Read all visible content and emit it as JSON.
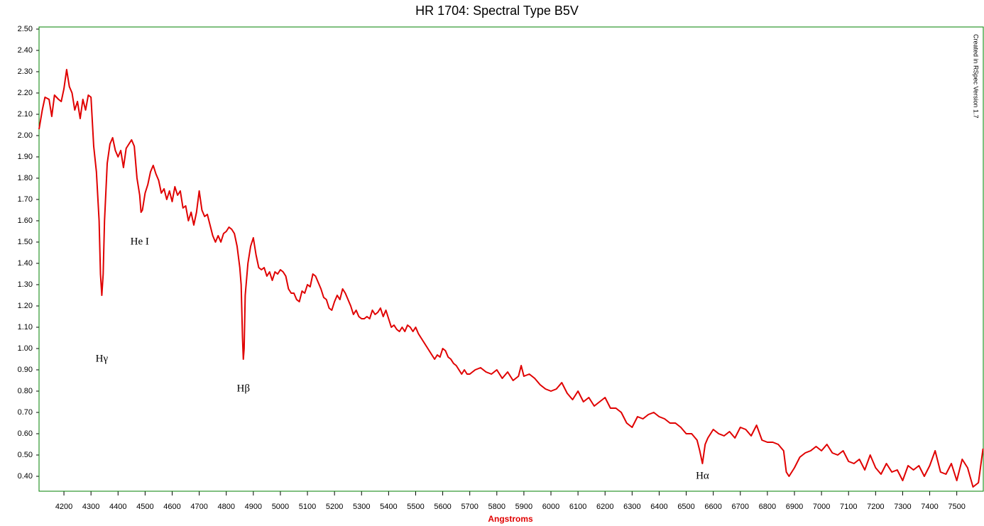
{
  "chart_data": {
    "type": "line",
    "title": "HR 1704: Spectral Type B5V",
    "x_label": "Angstroms",
    "note": "Created in RSpec Version 1.7",
    "xlim": [
      4108,
      7598
    ],
    "ylim": [
      0.33,
      2.51
    ],
    "xticks": [
      4200,
      4300,
      4400,
      4500,
      4600,
      4700,
      4800,
      4900,
      5000,
      5100,
      5200,
      5300,
      5400,
      5500,
      5600,
      5700,
      5800,
      5900,
      6000,
      6100,
      6200,
      6300,
      6400,
      6500,
      6600,
      6700,
      6800,
      6900,
      7000,
      7100,
      7200,
      7300,
      7400,
      7500
    ],
    "yticks": [
      {
        "value": 0.4,
        "label": "0.40"
      },
      {
        "value": 0.5,
        "label": "0.50"
      },
      {
        "value": 0.6,
        "label": "0.60"
      },
      {
        "value": 0.7,
        "label": "0.70"
      },
      {
        "value": 0.8,
        "label": "0.80"
      },
      {
        "value": 0.9,
        "label": "0.90"
      },
      {
        "value": 1.0,
        "label": "1.00"
      },
      {
        "value": 1.1,
        "label": "1.10"
      },
      {
        "value": 1.2,
        "label": "1.20"
      },
      {
        "value": 1.3,
        "label": "1.30"
      },
      {
        "value": 1.4,
        "label": "1.40"
      },
      {
        "value": 1.5,
        "label": "1.50"
      },
      {
        "value": 1.6,
        "label": "1.60"
      },
      {
        "value": 1.7,
        "label": "1.70"
      },
      {
        "value": 1.8,
        "label": "1.80"
      },
      {
        "value": 1.9,
        "label": "1.90"
      },
      {
        "value": 2.0,
        "label": "2.00"
      },
      {
        "value": 2.1,
        "label": "2.10"
      },
      {
        "value": 2.2,
        "label": "2.20"
      },
      {
        "value": 2.3,
        "label": "2.30"
      },
      {
        "value": 2.4,
        "label": "2.40"
      },
      {
        "value": 2.5,
        "label": "2.50"
      }
    ],
    "x": [
      4108,
      4120,
      4130,
      4145,
      4155,
      4165,
      4180,
      4190,
      4200,
      4210,
      4220,
      4230,
      4240,
      4250,
      4260,
      4270,
      4280,
      4290,
      4300,
      4310,
      4320,
      4330,
      4335,
      4340,
      4345,
      4350,
      4360,
      4370,
      4380,
      4390,
      4400,
      4410,
      4420,
      4430,
      4440,
      4450,
      4460,
      4470,
      4480,
      4485,
      4490,
      4500,
      4510,
      4520,
      4530,
      4540,
      4550,
      4560,
      4570,
      4580,
      4590,
      4600,
      4610,
      4620,
      4630,
      4640,
      4650,
      4660,
      4670,
      4680,
      4690,
      4700,
      4710,
      4720,
      4730,
      4740,
      4750,
      4760,
      4770,
      4780,
      4790,
      4800,
      4810,
      4820,
      4830,
      4840,
      4850,
      4855,
      4860,
      4863,
      4866,
      4870,
      4880,
      4890,
      4900,
      4910,
      4920,
      4930,
      4940,
      4950,
      4960,
      4970,
      4980,
      4990,
      5000,
      5010,
      5020,
      5030,
      5040,
      5050,
      5060,
      5070,
      5080,
      5090,
      5100,
      5110,
      5120,
      5130,
      5140,
      5150,
      5160,
      5170,
      5180,
      5190,
      5200,
      5210,
      5220,
      5230,
      5240,
      5250,
      5260,
      5270,
      5280,
      5290,
      5300,
      5310,
      5320,
      5330,
      5340,
      5350,
      5360,
      5370,
      5380,
      5390,
      5400,
      5410,
      5420,
      5430,
      5440,
      5450,
      5460,
      5470,
      5480,
      5490,
      5500,
      5510,
      5520,
      5530,
      5540,
      5550,
      5560,
      5570,
      5580,
      5590,
      5600,
      5610,
      5620,
      5630,
      5640,
      5650,
      5660,
      5670,
      5680,
      5690,
      5700,
      5720,
      5740,
      5760,
      5780,
      5800,
      5820,
      5840,
      5860,
      5880,
      5890,
      5900,
      5920,
      5940,
      5960,
      5980,
      6000,
      6020,
      6040,
      6060,
      6080,
      6100,
      6120,
      6140,
      6160,
      6180,
      6200,
      6220,
      6240,
      6260,
      6280,
      6300,
      6320,
      6340,
      6360,
      6380,
      6400,
      6420,
      6440,
      6460,
      6480,
      6500,
      6520,
      6540,
      6550,
      6560,
      6570,
      6580,
      6600,
      6620,
      6640,
      6660,
      6680,
      6700,
      6720,
      6740,
      6760,
      6780,
      6800,
      6820,
      6840,
      6860,
      6870,
      6880,
      6900,
      6920,
      6940,
      6960,
      6980,
      7000,
      7020,
      7040,
      7060,
      7080,
      7100,
      7120,
      7140,
      7160,
      7180,
      7200,
      7220,
      7240,
      7260,
      7280,
      7300,
      7320,
      7340,
      7360,
      7380,
      7400,
      7420,
      7440,
      7460,
      7480,
      7500,
      7520,
      7540,
      7560,
      7580,
      7597
    ],
    "series": [
      {
        "name": "HR 1704",
        "color": "#e00000",
        "values": [
          2.03,
          2.12,
          2.18,
          2.17,
          2.09,
          2.19,
          2.17,
          2.16,
          2.22,
          2.31,
          2.23,
          2.2,
          2.12,
          2.16,
          2.08,
          2.17,
          2.12,
          2.19,
          2.18,
          1.95,
          1.83,
          1.6,
          1.35,
          1.25,
          1.35,
          1.6,
          1.87,
          1.96,
          1.99,
          1.93,
          1.9,
          1.93,
          1.85,
          1.94,
          1.96,
          1.98,
          1.95,
          1.8,
          1.72,
          1.64,
          1.65,
          1.73,
          1.77,
          1.83,
          1.86,
          1.82,
          1.79,
          1.73,
          1.75,
          1.7,
          1.74,
          1.69,
          1.76,
          1.72,
          1.74,
          1.66,
          1.67,
          1.6,
          1.64,
          1.58,
          1.64,
          1.74,
          1.65,
          1.62,
          1.63,
          1.58,
          1.53,
          1.5,
          1.53,
          1.5,
          1.54,
          1.55,
          1.57,
          1.56,
          1.54,
          1.48,
          1.38,
          1.3,
          1.05,
          0.95,
          1.0,
          1.25,
          1.4,
          1.48,
          1.52,
          1.44,
          1.38,
          1.37,
          1.38,
          1.34,
          1.36,
          1.32,
          1.36,
          1.35,
          1.37,
          1.36,
          1.34,
          1.28,
          1.26,
          1.26,
          1.23,
          1.22,
          1.27,
          1.26,
          1.3,
          1.29,
          1.35,
          1.34,
          1.31,
          1.28,
          1.24,
          1.23,
          1.19,
          1.18,
          1.22,
          1.25,
          1.23,
          1.28,
          1.26,
          1.23,
          1.2,
          1.16,
          1.18,
          1.15,
          1.14,
          1.14,
          1.15,
          1.14,
          1.18,
          1.16,
          1.17,
          1.19,
          1.15,
          1.18,
          1.14,
          1.1,
          1.11,
          1.09,
          1.08,
          1.1,
          1.08,
          1.11,
          1.1,
          1.08,
          1.1,
          1.07,
          1.05,
          1.03,
          1.01,
          0.99,
          0.97,
          0.95,
          0.97,
          0.96,
          1.0,
          0.99,
          0.96,
          0.95,
          0.93,
          0.92,
          0.9,
          0.88,
          0.9,
          0.88,
          0.88,
          0.9,
          0.91,
          0.89,
          0.88,
          0.9,
          0.86,
          0.89,
          0.85,
          0.87,
          0.92,
          0.87,
          0.88,
          0.86,
          0.83,
          0.81,
          0.8,
          0.81,
          0.84,
          0.79,
          0.76,
          0.8,
          0.75,
          0.77,
          0.73,
          0.75,
          0.77,
          0.72,
          0.72,
          0.7,
          0.65,
          0.63,
          0.68,
          0.67,
          0.69,
          0.7,
          0.68,
          0.67,
          0.65,
          0.65,
          0.63,
          0.6,
          0.6,
          0.57,
          0.52,
          0.46,
          0.55,
          0.58,
          0.62,
          0.6,
          0.59,
          0.61,
          0.58,
          0.63,
          0.62,
          0.59,
          0.64,
          0.57,
          0.56,
          0.56,
          0.55,
          0.52,
          0.42,
          0.4,
          0.44,
          0.49,
          0.51,
          0.52,
          0.54,
          0.52,
          0.55,
          0.51,
          0.5,
          0.52,
          0.47,
          0.46,
          0.48,
          0.43,
          0.5,
          0.44,
          0.41,
          0.46,
          0.42,
          0.43,
          0.38,
          0.45,
          0.43,
          0.45,
          0.4,
          0.45,
          0.52,
          0.42,
          0.41,
          0.46,
          0.38,
          0.48,
          0.44,
          0.35,
          0.37,
          0.53
        ]
      }
    ],
    "annotations": [
      {
        "text": "Hγ",
        "x": 4340,
        "y": 0.95
      },
      {
        "text": "He I",
        "x": 4480,
        "y": 1.5
      },
      {
        "text": "Hβ",
        "x": 4863,
        "y": 0.81
      },
      {
        "text": "Hα",
        "x": 6560,
        "y": 0.4
      }
    ],
    "frame_color": "#008000",
    "grid": false
  }
}
